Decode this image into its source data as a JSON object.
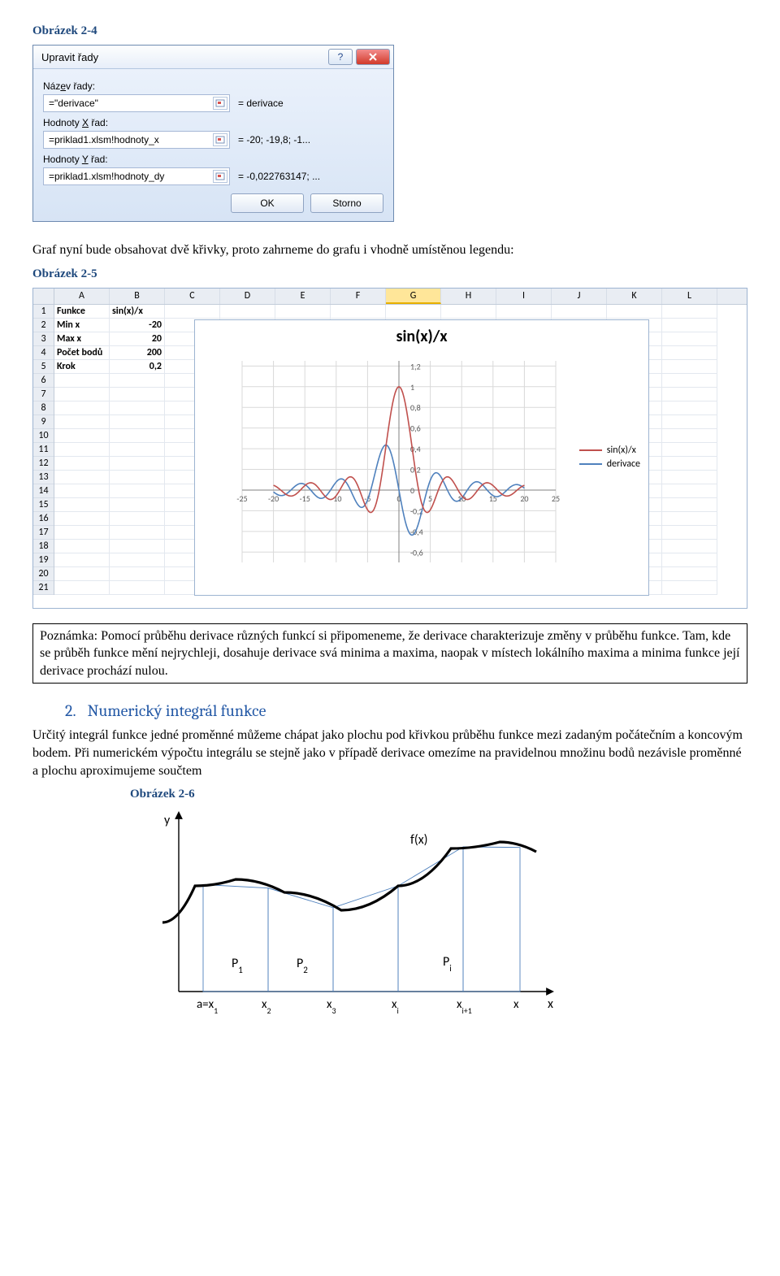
{
  "figure_24": "Obrázek 2-4",
  "dialog": {
    "title": "Upravit řady",
    "name_label_pre": "Náz",
    "name_label_ul": "e",
    "name_label_post": "v řady:",
    "name_value": "=\"derivace\"",
    "name_result": "= derivace",
    "x_label_pre": "Hodnoty ",
    "x_label_ul": "X",
    "x_label_post": " řad:",
    "x_value": "=priklad1.xlsm!hodnoty_x",
    "x_result": "= -20; -19,8; -1...",
    "y_label_pre": "Hodnoty ",
    "y_label_ul": "Y",
    "y_label_post": " řad:",
    "y_value": "=priklad1.xlsm!hodnoty_dy",
    "y_result": "= -0,022763147; ...",
    "ok": "OK",
    "cancel": "Storno"
  },
  "para1": "Graf nyní bude obsahovat dvě křivky, proto zahrneme do grafu i vhodně umístěnou legendu:",
  "figure_25": "Obrázek 2-5",
  "spreadsheet": {
    "cols": [
      "A",
      "B",
      "C",
      "D",
      "E",
      "F",
      "G",
      "H",
      "I",
      "J",
      "K",
      "L"
    ],
    "selected_col": 6,
    "row_count": 21,
    "data": {
      "A1": "Funkce",
      "B1": "sin(x)/x",
      "A2": "Min x",
      "B2": "-20",
      "A3": "Max x",
      "B3": "20",
      "A4": "Počet bodů",
      "B4": "200",
      "A5": "Krok",
      "B5": "0,2"
    }
  },
  "chart": {
    "title": "sin(x)/x",
    "series1_label": "sin(x)/x",
    "series1_color": "#c0504d",
    "series2_label": "derivace",
    "series2_color": "#4f81bd",
    "grid_color": "#d9d9d9",
    "axis_color": "#808080",
    "x_ticks": [
      -25,
      -20,
      -15,
      -10,
      -5,
      0,
      5,
      10,
      15,
      20,
      25
    ],
    "y_ticks": [
      -0.6,
      -0.4,
      -0.2,
      0,
      0.2,
      0.4,
      0.6,
      0.8,
      1,
      1.2
    ],
    "x_min": -25,
    "x_max": 25,
    "y_min": -0.7,
    "y_max": 1.25
  },
  "note": "Poznámka: Pomocí průběhu derivace různých funkcí si připomeneme, že derivace charakterizuje změny v průběhu funkce. Tam, kde se průběh funkce mění nejrychleji, dosahuje derivace svá minima a maxima, naopak v místech lokálního maxima a minima funkce její derivace prochází nulou.",
  "section2": {
    "num": "2.",
    "title": "Numerický integrál funkce"
  },
  "para2": "Určitý integrál funkce jedné proměnné můžeme chápat jako plochu pod křivkou průběhu funkce mezi zadaným počátečním a koncovým bodem. Při numerickém výpočtu integrálu se stejně jako v případě derivace omezíme na pravidelnou množinu bodů nezávisle proměnné a plochu aproximujeme součtem",
  "figure_26": "Obrázek 2-6",
  "int_diag": {
    "y_label": "y",
    "x_label": "x",
    "fx_label": "f(x)",
    "p_labels": [
      "P",
      "P",
      "P"
    ],
    "p_subs": [
      "1",
      "2",
      "i"
    ],
    "x_ticks": [
      "a=x",
      "x",
      "x",
      "x",
      "x",
      "x"
    ],
    "x_subs": [
      "1",
      "2",
      "3",
      "i",
      "i+1",
      ""
    ]
  }
}
